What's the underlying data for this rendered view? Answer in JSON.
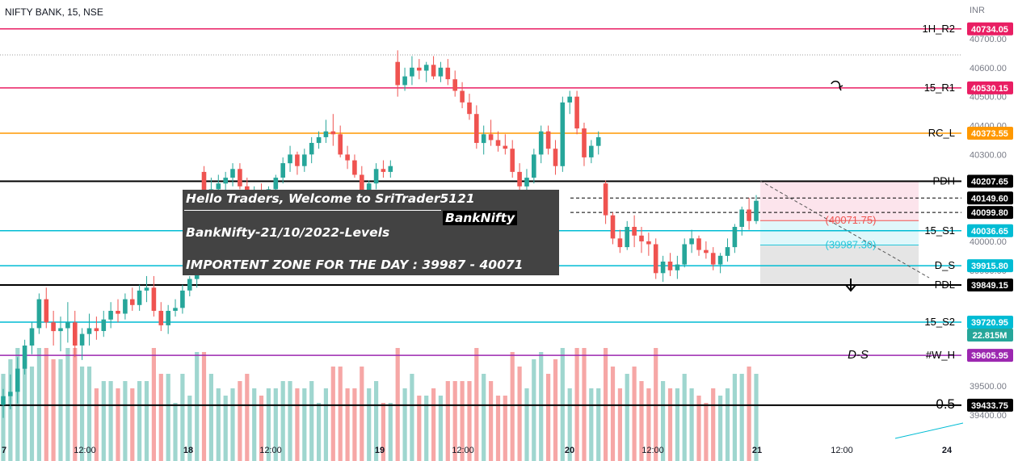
{
  "header": {
    "symbol": "NIFTY BANK, 15, NSE",
    "currency": "INR"
  },
  "note": {
    "line1": "Hello Traders,  Welcome to SriTrader5121",
    "tag": "BankNifty",
    "line3": "BankNifty-21/10/2022-Levels",
    "line4": "IMPORTENT ZONE FOR THE DAY :  39987 - 40071"
  },
  "colors": {
    "up": "#26a69a",
    "down": "#ef5350",
    "vol_up": "#9fd6cf",
    "vol_down": "#f6a7a6",
    "pivot": "#e91e63",
    "rc": "#ff9800",
    "black": "#000000",
    "cyan": "#00bcd4",
    "purple": "#9c27b0",
    "zone_pink": "#fce4ec",
    "zone_cyan": "#e0f7fa",
    "zone_gray": "#e5e5e5"
  },
  "chart_data": {
    "type": "candlestick",
    "price_axis": {
      "range": [
        39350,
        40800
      ],
      "ticks": [
        40700,
        40600,
        40500,
        40400,
        40300,
        40000,
        39900,
        39500,
        39400
      ]
    },
    "time_axis": {
      "labels": [
        "7",
        "12:00",
        "18",
        "12:00",
        "19",
        "12:00",
        "20",
        "12:00",
        "21",
        "12:00",
        "24"
      ]
    },
    "levels": [
      {
        "name": "1H_R2",
        "price": 40734.05,
        "label": "40734.05",
        "color": "pivot"
      },
      {
        "name": "15_R1",
        "price": 40530.15,
        "label": "40530.15",
        "color": "pivot"
      },
      {
        "name": "RC_L",
        "price": 40373.55,
        "label": "40373.55",
        "color": "rc"
      },
      {
        "name": "PDH",
        "price": 40207.65,
        "label": "40207.65",
        "color": "black"
      },
      {
        "name": "15_S1",
        "price": 40036.65,
        "label": "40036.65",
        "color": "cyan"
      },
      {
        "name": "D_S",
        "price": 39915.8,
        "label": "39915.80",
        "color": "cyan"
      },
      {
        "name": "PDL",
        "price": 39849.15,
        "label": "39849.15",
        "color": "black"
      },
      {
        "name": "15_S2",
        "price": 39720.95,
        "label": "39720.95",
        "color": "cyan"
      },
      {
        "name": "#W_H",
        "price": 39605.95,
        "label": "39605.95",
        "color": "purple"
      },
      {
        "name": "0.5",
        "price": 39433.75,
        "label": "39433.75",
        "color": "black"
      }
    ],
    "price_markers": [
      {
        "price": 40149.6,
        "label": "40149.60"
      },
      {
        "price": 40099.8,
        "label": "40099.80"
      }
    ],
    "volume_label": "22.815M",
    "zone_labels": [
      {
        "text": "(40071.75)",
        "price": 40071.75
      },
      {
        "text": "(39987.30)",
        "price": 39987.3
      }
    ],
    "annotation": "D-S",
    "candles": [
      [
        39435,
        39490,
        39390,
        39465
      ],
      [
        39465,
        39540,
        39420,
        39480
      ],
      [
        39480,
        39600,
        39440,
        39560
      ],
      [
        39560,
        39660,
        39540,
        39640
      ],
      [
        39640,
        39720,
        39610,
        39700
      ],
      [
        39700,
        39820,
        39680,
        39800
      ],
      [
        39800,
        39840,
        39700,
        39720
      ],
      [
        39720,
        39760,
        39640,
        39690
      ],
      [
        39690,
        39740,
        39620,
        39700
      ],
      [
        39700,
        39790,
        39650,
        39720
      ],
      [
        39720,
        39760,
        39600,
        39640
      ],
      [
        39640,
        39700,
        39590,
        39680
      ],
      [
        39680,
        39750,
        39640,
        39700
      ],
      [
        39700,
        39740,
        39660,
        39690
      ],
      [
        39690,
        39760,
        39670,
        39730
      ],
      [
        39730,
        39790,
        39700,
        39760
      ],
      [
        39760,
        39800,
        39720,
        39750
      ],
      [
        39750,
        39820,
        39730,
        39800
      ],
      [
        39800,
        39840,
        39760,
        39780
      ],
      [
        39780,
        39850,
        39760,
        39830
      ],
      [
        39830,
        39880,
        39790,
        39840
      ],
      [
        39840,
        39880,
        39740,
        39760
      ],
      [
        39760,
        39790,
        39690,
        39710
      ],
      [
        39710,
        39780,
        39680,
        39760
      ],
      [
        39760,
        39800,
        39740,
        39770
      ],
      [
        39770,
        39850,
        39750,
        39830
      ],
      [
        39830,
        39880,
        39810,
        39870
      ],
      [
        39870,
        39970,
        39840,
        39960
      ],
      [
        40240,
        40260,
        40130,
        40170
      ],
      [
        40170,
        40220,
        40120,
        40180
      ],
      [
        40180,
        40230,
        40150,
        40200
      ],
      [
        40200,
        40240,
        40170,
        40220
      ],
      [
        40220,
        40270,
        40190,
        40250
      ],
      [
        40250,
        40270,
        40180,
        40190
      ],
      [
        40190,
        40220,
        40120,
        40140
      ],
      [
        40140,
        40190,
        40110,
        40160
      ],
      [
        40160,
        40200,
        40130,
        40150
      ],
      [
        40150,
        40190,
        40110,
        40180
      ],
      [
        40180,
        40230,
        40150,
        40220
      ],
      [
        40220,
        40290,
        40200,
        40270
      ],
      [
        40270,
        40330,
        40240,
        40300
      ],
      [
        40300,
        40310,
        40230,
        40260
      ],
      [
        40260,
        40320,
        40240,
        40300
      ],
      [
        40300,
        40360,
        40270,
        40340
      ],
      [
        40340,
        40380,
        40320,
        40360
      ],
      [
        40360,
        40420,
        40340,
        40380
      ],
      [
        40380,
        40440,
        40330,
        40370
      ],
      [
        40370,
        40400,
        40290,
        40300
      ],
      [
        40300,
        40330,
        40250,
        40280
      ],
      [
        40280,
        40300,
        40220,
        40230
      ],
      [
        40230,
        40260,
        40150,
        40170
      ],
      [
        40170,
        40210,
        40130,
        40200
      ],
      [
        40200,
        40270,
        40180,
        40250
      ],
      [
        40250,
        40280,
        40220,
        40240
      ],
      [
        40240,
        40280,
        40220,
        40260
      ],
      [
        40620,
        40660,
        40500,
        40540
      ],
      [
        40540,
        40600,
        40520,
        40570
      ],
      [
        40570,
        40640,
        40540,
        40600
      ],
      [
        40600,
        40630,
        40560,
        40590
      ],
      [
        40590,
        40620,
        40550,
        40610
      ],
      [
        40610,
        40640,
        40560,
        40570
      ],
      [
        40570,
        40620,
        40550,
        40600
      ],
      [
        40600,
        40630,
        40540,
        40560
      ],
      [
        40560,
        40590,
        40500,
        40520
      ],
      [
        40520,
        40550,
        40460,
        40480
      ],
      [
        40480,
        40510,
        40420,
        40440
      ],
      [
        40440,
        40470,
        40320,
        40340
      ],
      [
        40340,
        40400,
        40300,
        40370
      ],
      [
        40370,
        40420,
        40330,
        40350
      ],
      [
        40350,
        40380,
        40310,
        40330
      ],
      [
        40330,
        40370,
        40300,
        40320
      ],
      [
        40320,
        40350,
        40220,
        40240
      ],
      [
        40240,
        40270,
        40160,
        40190
      ],
      [
        40190,
        40250,
        40170,
        40220
      ],
      [
        40220,
        40320,
        40200,
        40300
      ],
      [
        40300,
        40400,
        40270,
        40380
      ],
      [
        40380,
        40400,
        40300,
        40320
      ],
      [
        40320,
        40350,
        40230,
        40260
      ],
      [
        40260,
        40500,
        40240,
        40480
      ],
      [
        40480,
        40520,
        40440,
        40500
      ],
      [
        40500,
        40520,
        40370,
        40390
      ],
      [
        40390,
        40410,
        40260,
        40290
      ],
      [
        40290,
        40350,
        40270,
        40330
      ],
      [
        40330,
        40380,
        40300,
        40360
      ],
      [
        40200,
        40210,
        40060,
        40090
      ],
      [
        40090,
        40100,
        39990,
        40010
      ],
      [
        40010,
        40040,
        39960,
        39980
      ],
      [
        39980,
        40070,
        39970,
        40050
      ],
      [
        40050,
        40090,
        39980,
        40020
      ],
      [
        40020,
        40050,
        39960,
        40000
      ],
      [
        40000,
        40030,
        39950,
        39990
      ],
      [
        39990,
        40010,
        39870,
        39890
      ],
      [
        39890,
        39950,
        39860,
        39930
      ],
      [
        39930,
        39960,
        39880,
        39900
      ],
      [
        39900,
        39950,
        39870,
        39920
      ],
      [
        39920,
        40010,
        39910,
        39990
      ],
      [
        39990,
        40040,
        39960,
        40010
      ],
      [
        40010,
        40020,
        39950,
        39970
      ],
      [
        39970,
        40000,
        39940,
        39960
      ],
      [
        39960,
        39980,
        39900,
        39920
      ],
      [
        39920,
        39960,
        39890,
        39950
      ],
      [
        39950,
        40010,
        39930,
        39980
      ],
      [
        39980,
        40060,
        39960,
        40050
      ],
      [
        40050,
        40120,
        40020,
        40110
      ],
      [
        40110,
        40150,
        40040,
        40070
      ],
      [
        40070,
        40160,
        40060,
        40140
      ]
    ]
  }
}
